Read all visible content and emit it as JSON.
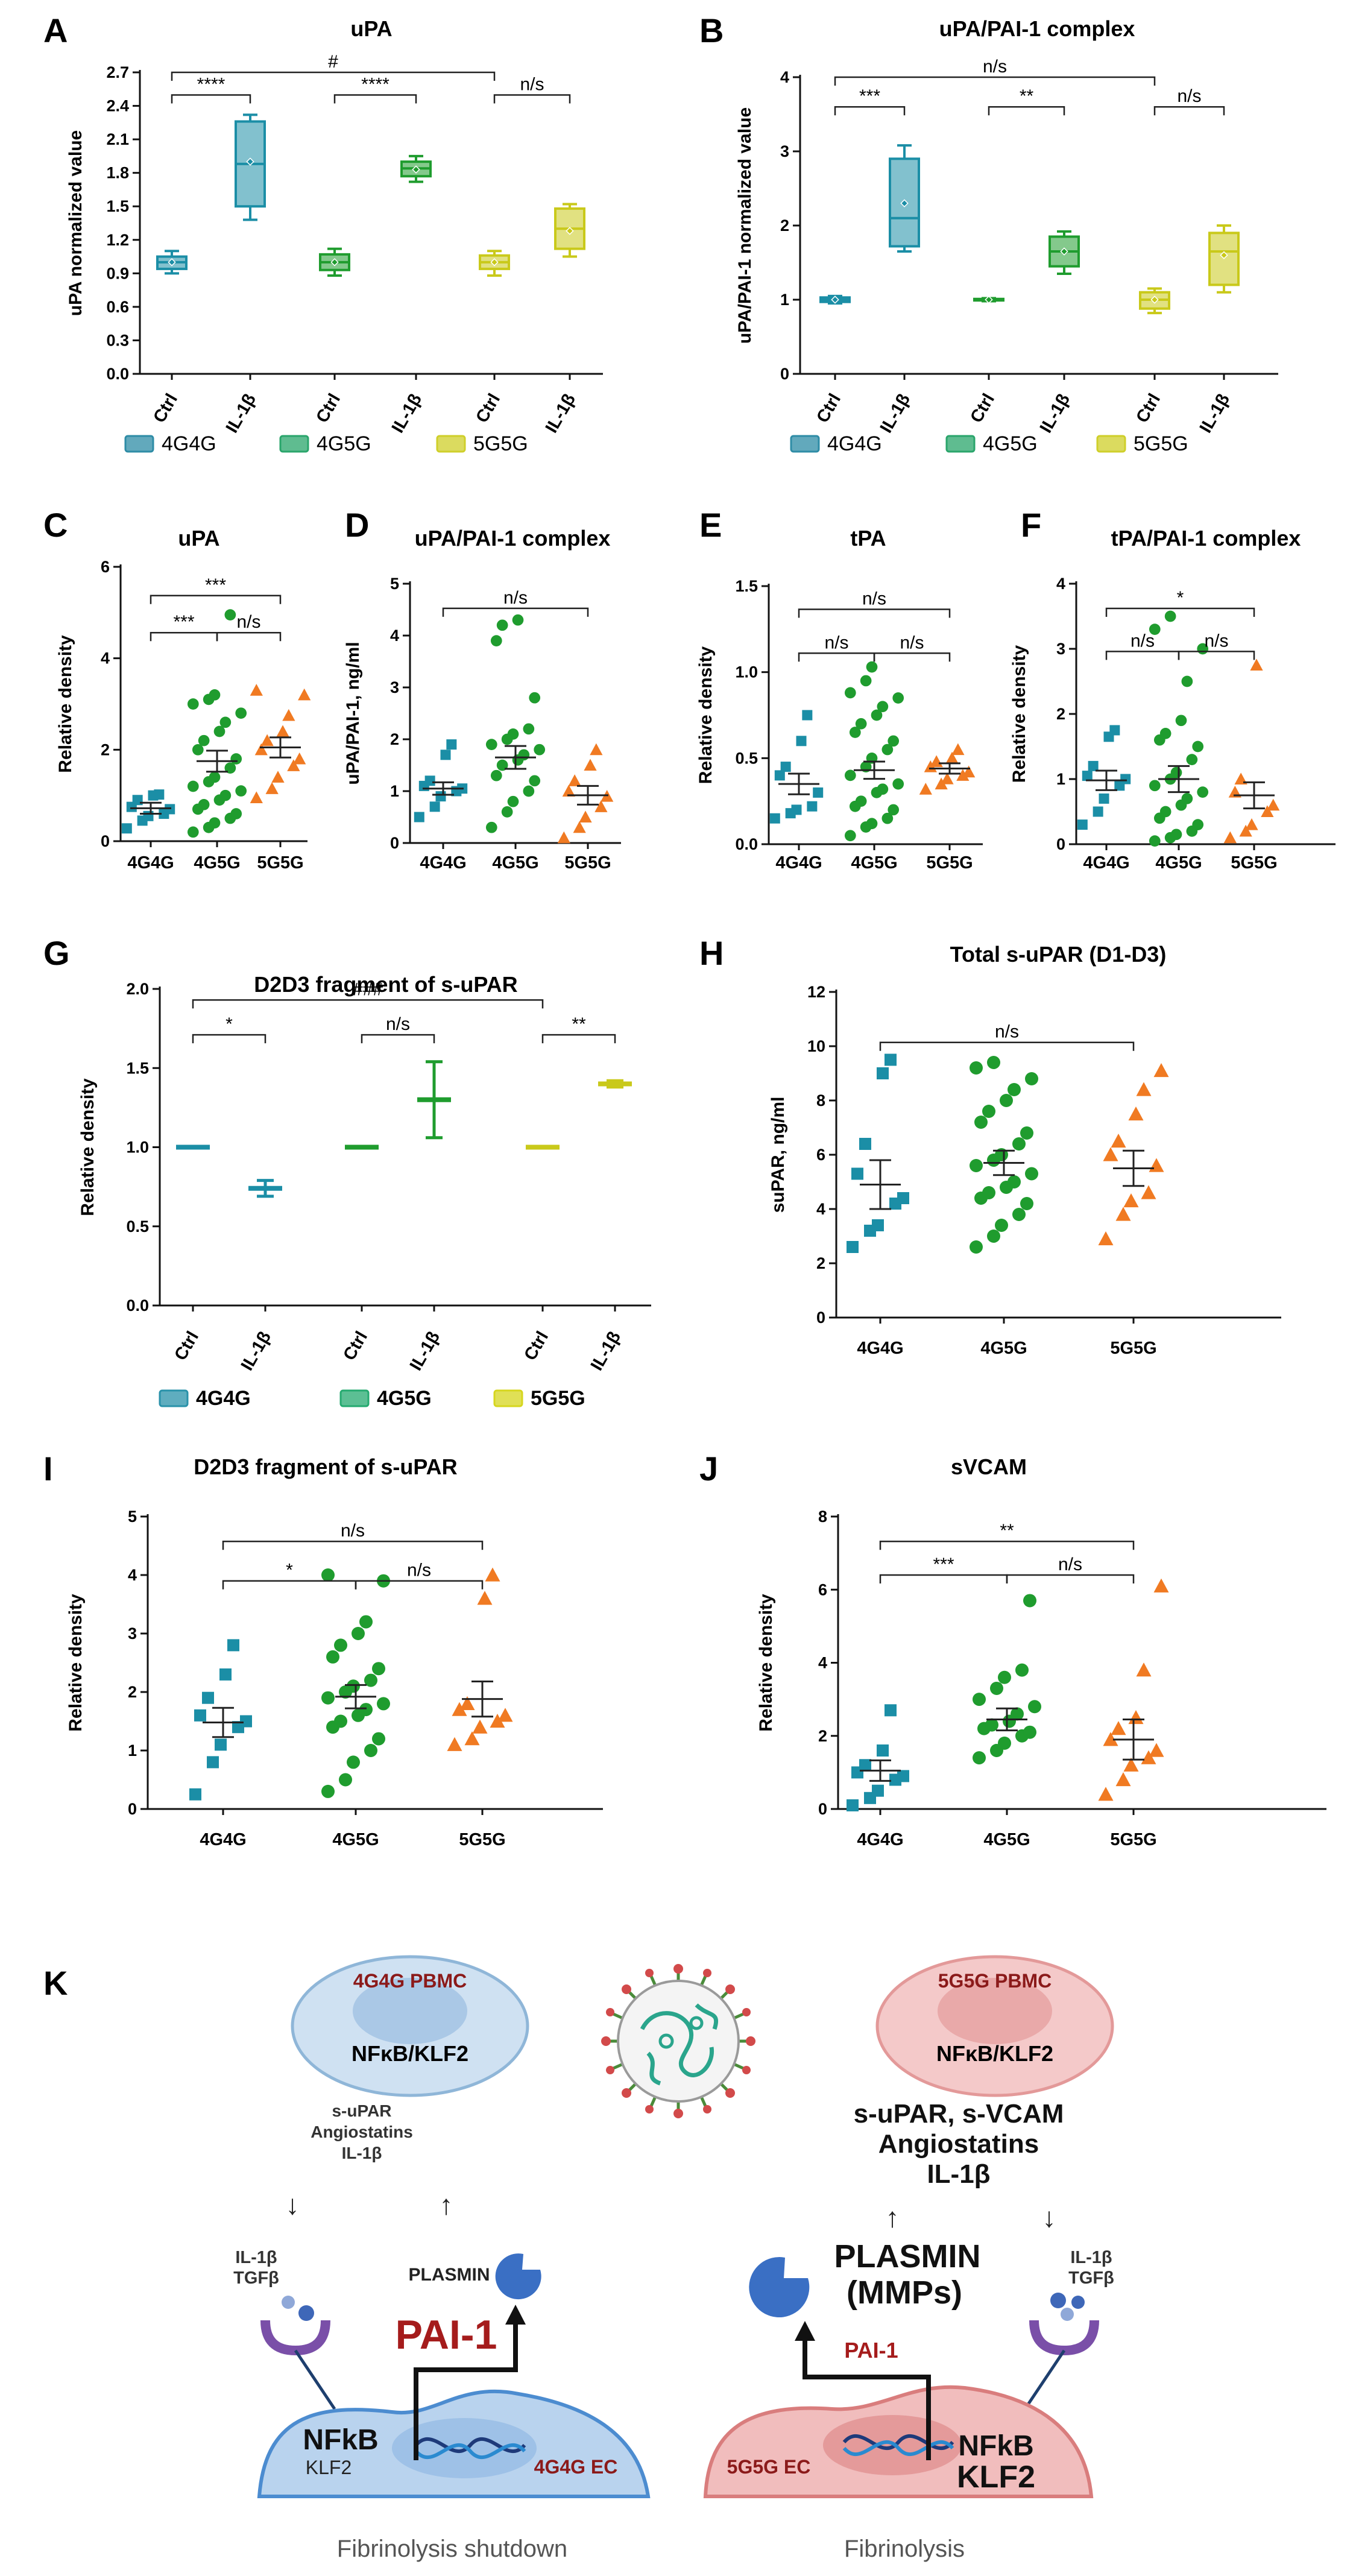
{
  "panel_labels": {
    "A": "A",
    "B": "B",
    "C": "C",
    "D": "D",
    "E": "E",
    "F": "F",
    "G": "G",
    "H": "H",
    "I": "I",
    "J": "J",
    "K": "K"
  },
  "groups": [
    "4G4G",
    "4G5G",
    "5G5G"
  ],
  "conditions": [
    "Ctrl",
    "IL-1β"
  ],
  "colors": {
    "4G4G": "#1b8ea6",
    "4G5G": "#1f9c2e",
    "5G5G": "#c9c91a",
    "orange": "#f07a22",
    "legendA": [
      "#2e8ca6",
      "#2aa56b",
      "#cfcf2a"
    ],
    "legendG": [
      "#2a92aa",
      "#25aa70",
      "#d6d61e"
    ]
  },
  "chart_data": [
    {
      "id": "A",
      "type": "box",
      "title": "uPA",
      "ylabel": "uPA normalized value",
      "ylim": [
        0,
        2.7
      ],
      "yticks": [
        "0.0",
        "0.3",
        "0.6",
        "0.9",
        "1.2",
        "1.5",
        "1.8",
        "2.1",
        "2.4",
        "2.7"
      ],
      "categories": [
        "Ctrl",
        "IL-1β",
        "Ctrl",
        "IL-1β",
        "Ctrl",
        "IL-1β"
      ],
      "boxes": [
        {
          "group": "4G4G",
          "cond": "Ctrl",
          "min": 0.9,
          "q1": 0.94,
          "median": 1.0,
          "q3": 1.05,
          "max": 1.1,
          "mean": 1.0
        },
        {
          "group": "4G4G",
          "cond": "IL-1β",
          "min": 1.38,
          "q1": 1.5,
          "median": 1.88,
          "q3": 2.26,
          "max": 2.32,
          "mean": 1.9
        },
        {
          "group": "4G5G",
          "cond": "Ctrl",
          "min": 0.88,
          "q1": 0.93,
          "median": 1.0,
          "q3": 1.07,
          "max": 1.12,
          "mean": 1.0
        },
        {
          "group": "4G5G",
          "cond": "IL-1β",
          "min": 1.72,
          "q1": 1.77,
          "median": 1.84,
          "q3": 1.9,
          "max": 1.95,
          "mean": 1.83
        },
        {
          "group": "5G5G",
          "cond": "Ctrl",
          "min": 0.88,
          "q1": 0.94,
          "median": 1.0,
          "q3": 1.06,
          "max": 1.1,
          "mean": 1.0
        },
        {
          "group": "5G5G",
          "cond": "IL-1β",
          "min": 1.05,
          "q1": 1.12,
          "median": 1.3,
          "q3": 1.48,
          "max": 1.52,
          "mean": 1.28
        }
      ],
      "annotations": [
        "****",
        "****",
        "n/s",
        "#"
      ],
      "legend": [
        "4G4G",
        "4G5G",
        "5G5G"
      ]
    },
    {
      "id": "B",
      "type": "box",
      "title": "uPA/PAI-1 complex",
      "ylabel": "uPA/PAI-1 normalized value",
      "ylim": [
        0,
        4
      ],
      "yticks": [
        "0",
        "1",
        "2",
        "3",
        "4"
      ],
      "categories": [
        "Ctrl",
        "IL-1β",
        "Ctrl",
        "IL-1β",
        "Ctrl",
        "IL-1β"
      ],
      "boxes": [
        {
          "group": "4G4G",
          "cond": "Ctrl",
          "min": 0.95,
          "q1": 0.97,
          "median": 1.0,
          "q3": 1.03,
          "max": 1.05,
          "mean": 1.0
        },
        {
          "group": "4G4G",
          "cond": "IL-1β",
          "min": 1.65,
          "q1": 1.72,
          "median": 2.1,
          "q3": 2.9,
          "max": 3.08,
          "mean": 2.3
        },
        {
          "group": "4G5G",
          "cond": "Ctrl",
          "min": 0.98,
          "q1": 0.99,
          "median": 1.0,
          "q3": 1.01,
          "max": 1.02,
          "mean": 1.0
        },
        {
          "group": "4G5G",
          "cond": "IL-1β",
          "min": 1.35,
          "q1": 1.45,
          "median": 1.65,
          "q3": 1.85,
          "max": 1.92,
          "mean": 1.65
        },
        {
          "group": "5G5G",
          "cond": "Ctrl",
          "min": 0.82,
          "q1": 0.88,
          "median": 1.0,
          "q3": 1.1,
          "max": 1.15,
          "mean": 1.0
        },
        {
          "group": "5G5G",
          "cond": "IL-1β",
          "min": 1.1,
          "q1": 1.2,
          "median": 1.65,
          "q3": 1.9,
          "max": 2.0,
          "mean": 1.6
        }
      ],
      "annotations": [
        "***",
        "**",
        "n/s",
        "n/s"
      ],
      "legend": [
        "4G4G",
        "4G5G",
        "5G5G"
      ]
    },
    {
      "id": "C",
      "type": "scatter",
      "title": "uPA",
      "ylabel": "Relative density",
      "ylim": [
        0,
        6
      ],
      "yticks": [
        "0",
        "2",
        "4",
        "6"
      ],
      "categories": [
        "4G4G",
        "4G5G",
        "5G5G"
      ],
      "points": [
        [
          0.28,
          0.45,
          0.55,
          0.6,
          0.7,
          0.75,
          0.9,
          1.0,
          1.02
        ],
        [
          0.2,
          0.3,
          0.4,
          0.5,
          0.6,
          0.7,
          0.8,
          0.9,
          1.0,
          1.1,
          1.2,
          1.3,
          1.4,
          1.6,
          1.8,
          2.0,
          2.2,
          2.4,
          2.6,
          2.8,
          3.0,
          3.1,
          3.2,
          4.95
        ],
        [
          0.95,
          1.15,
          1.4,
          1.65,
          1.8,
          2.0,
          2.2,
          2.4,
          2.75,
          3.2,
          3.3
        ]
      ],
      "means": [
        0.72,
        1.75,
        2.05
      ],
      "sems": [
        0.12,
        0.23,
        0.22
      ],
      "annotations": [
        "***",
        "n/s",
        "***"
      ]
    },
    {
      "id": "D",
      "type": "scatter",
      "title": "uPA/PAI-1 complex",
      "ylabel": "uPA/PAI-1, ng/ml",
      "ylim": [
        0,
        5
      ],
      "yticks": [
        "0",
        "1",
        "2",
        "3",
        "4",
        "5"
      ],
      "categories": [
        "4G4G",
        "4G5G",
        "5G5G"
      ],
      "points": [
        [
          0.5,
          0.7,
          0.9,
          1.0,
          1.05,
          1.1,
          1.2,
          1.7,
          1.9
        ],
        [
          0.3,
          0.6,
          0.8,
          1.0,
          1.2,
          1.3,
          1.5,
          1.6,
          1.7,
          1.8,
          1.9,
          2.0,
          2.1,
          2.2,
          2.8,
          3.9,
          4.2,
          4.3
        ],
        [
          0.1,
          0.3,
          0.5,
          0.7,
          0.9,
          1.0,
          1.2,
          1.5,
          1.8
        ]
      ],
      "means": [
        1.05,
        1.65,
        0.92
      ],
      "sems": [
        0.12,
        0.22,
        0.18
      ],
      "annotations": [
        "n/s"
      ]
    },
    {
      "id": "E",
      "type": "scatter",
      "title": "tPA",
      "ylabel": "Relative density",
      "ylim": [
        0,
        1.5
      ],
      "yticks": [
        "0.0",
        "0.5",
        "1.0",
        "1.5"
      ],
      "categories": [
        "4G4G",
        "4G5G",
        "5G5G"
      ],
      "points": [
        [
          0.15,
          0.18,
          0.2,
          0.22,
          0.3,
          0.4,
          0.45,
          0.6,
          0.75
        ],
        [
          0.05,
          0.1,
          0.12,
          0.15,
          0.2,
          0.22,
          0.25,
          0.3,
          0.32,
          0.35,
          0.4,
          0.45,
          0.5,
          0.55,
          0.6,
          0.65,
          0.7,
          0.75,
          0.8,
          0.85,
          0.88,
          0.95,
          1.03
        ],
        [
          0.32,
          0.35,
          0.38,
          0.4,
          0.42,
          0.45,
          0.48,
          0.5,
          0.55
        ]
      ],
      "means": [
        0.35,
        0.43,
        0.44
      ],
      "sems": [
        0.06,
        0.05,
        0.03
      ],
      "annotations": [
        "n/s",
        "n/s",
        "n/s"
      ]
    },
    {
      "id": "F",
      "type": "scatter",
      "title": "tPA/PAI-1 complex",
      "ylabel": "Relative density",
      "ylim": [
        0,
        4
      ],
      "yticks": [
        "0",
        "1",
        "2",
        "3",
        "4"
      ],
      "categories": [
        "4G4G",
        "4G5G",
        "5G5G"
      ],
      "points": [
        [
          0.3,
          0.5,
          0.7,
          0.9,
          1.0,
          1.05,
          1.2,
          1.65,
          1.75
        ],
        [
          0.05,
          0.1,
          0.15,
          0.2,
          0.3,
          0.4,
          0.5,
          0.6,
          0.7,
          0.8,
          0.9,
          1.0,
          1.1,
          1.3,
          1.5,
          1.6,
          1.7,
          1.9,
          2.5,
          3.0,
          3.3,
          3.5
        ],
        [
          0.1,
          0.2,
          0.3,
          0.5,
          0.6,
          0.8,
          1.0,
          2.75
        ]
      ],
      "means": [
        0.98,
        1.0,
        0.75
      ],
      "sems": [
        0.15,
        0.2,
        0.2
      ],
      "annotations": [
        "n/s",
        "n/s",
        "*"
      ]
    },
    {
      "id": "G",
      "type": "errorbar",
      "title": "D2D3 fragment of s-uPAR",
      "ylabel": "Relative density",
      "ylim": [
        0,
        2
      ],
      "yticks": [
        "0.0",
        "0.5",
        "1.0",
        "1.5",
        "2.0"
      ],
      "categories": [
        "Ctrl",
        "IL-1β",
        "Ctrl",
        "IL-1β",
        "Ctrl",
        "IL-1β"
      ],
      "means": [
        1.0,
        0.74,
        1.0,
        1.3,
        1.0,
        1.4
      ],
      "sems": [
        0,
        0.05,
        0,
        0.24,
        0,
        0.02
      ],
      "annotations": [
        "*",
        "n/s",
        "**",
        "###"
      ],
      "legend": [
        "4G4G",
        "4G5G",
        "5G5G"
      ]
    },
    {
      "id": "H",
      "type": "scatter",
      "title": "Total s-uPAR (D1-D3)",
      "ylabel": "suPAR, ng/ml",
      "ylim": [
        0,
        12
      ],
      "yticks": [
        "0",
        "2",
        "4",
        "6",
        "8",
        "10",
        "12"
      ],
      "categories": [
        "4G4G",
        "4G5G",
        "5G5G"
      ],
      "points": [
        [
          2.6,
          3.2,
          3.4,
          4.2,
          4.4,
          5.3,
          6.4,
          9.0,
          9.5
        ],
        [
          2.6,
          3.0,
          3.4,
          3.8,
          4.2,
          4.4,
          4.6,
          4.8,
          5.0,
          5.3,
          5.6,
          5.8,
          6.0,
          6.4,
          6.8,
          7.2,
          7.6,
          8.0,
          8.4,
          8.8,
          9.2,
          9.4
        ],
        [
          2.9,
          3.8,
          4.3,
          4.6,
          5.6,
          6.0,
          6.5,
          7.5,
          8.4,
          9.1
        ]
      ],
      "means": [
        4.9,
        5.7,
        5.5
      ],
      "sems": [
        0.9,
        0.45,
        0.65
      ],
      "annotations": [
        "n/s"
      ]
    },
    {
      "id": "I",
      "type": "scatter",
      "title": "D2D3 fragment of s-uPAR",
      "ylabel": "Relative density",
      "ylim": [
        0,
        5
      ],
      "yticks": [
        "0",
        "1",
        "2",
        "3",
        "4",
        "5"
      ],
      "categories": [
        "4G4G",
        "4G5G",
        "5G5G"
      ],
      "points": [
        [
          0.25,
          0.8,
          1.1,
          1.4,
          1.5,
          1.6,
          1.9,
          2.3,
          2.8
        ],
        [
          0.3,
          0.5,
          0.8,
          1.0,
          1.2,
          1.4,
          1.5,
          1.6,
          1.7,
          1.8,
          1.9,
          2.0,
          2.1,
          2.2,
          2.4,
          2.6,
          2.8,
          3.0,
          3.2,
          3.9,
          4.0
        ],
        [
          1.1,
          1.2,
          1.4,
          1.5,
          1.6,
          1.7,
          1.8,
          3.6,
          4.0
        ]
      ],
      "means": [
        1.48,
        1.92,
        1.88
      ],
      "sems": [
        0.25,
        0.2,
        0.3
      ],
      "annotations": [
        "*",
        "n/s",
        "n/s"
      ]
    },
    {
      "id": "J",
      "type": "scatter",
      "title": "sVCAM",
      "ylabel": "Relative density",
      "ylim": [
        0,
        8
      ],
      "yticks": [
        "0",
        "2",
        "4",
        "6",
        "8"
      ],
      "categories": [
        "4G4G",
        "4G5G",
        "5G5G"
      ],
      "points": [
        [
          0.1,
          0.3,
          0.5,
          0.8,
          0.9,
          1.0,
          1.2,
          1.6,
          2.7
        ],
        [
          1.4,
          1.6,
          1.8,
          2.0,
          2.1,
          2.2,
          2.3,
          2.4,
          2.6,
          2.8,
          3.0,
          3.3,
          3.6,
          3.8,
          5.7
        ],
        [
          0.4,
          0.8,
          1.2,
          1.4,
          1.6,
          1.9,
          2.2,
          2.5,
          3.8,
          6.1
        ]
      ],
      "means": [
        1.05,
        2.45,
        1.9
      ],
      "sems": [
        0.28,
        0.3,
        0.55
      ],
      "annotations": [
        "***",
        "n/s",
        "**"
      ]
    }
  ],
  "diagram": {
    "virus_icon": "coronavirus-icon",
    "left": {
      "cell_label": "4G4G PBMC",
      "nucleus_label": "NFκB/KLF2",
      "secreted": [
        "s-uPAR",
        "Angiostatins",
        "IL-1β"
      ],
      "ligands": [
        "IL-1β",
        "TGFβ"
      ],
      "plasmin": "PLASMIN",
      "pai1": "PAI-1",
      "ec_nfkb": "NFkB",
      "ec_klf2": "KLF2",
      "ec_label": "4G4G EC",
      "caption": "Fibrinolysis shutdown"
    },
    "right": {
      "cell_label": "5G5G PBMC",
      "nucleus_label": "NFκB/KLF2",
      "secreted": [
        "s-uPAR, s-VCAM",
        "Angiostatins",
        "IL-1β"
      ],
      "ligands": [
        "IL-1β",
        "TGFβ"
      ],
      "plasmin": "PLASMIN",
      "mmps": "(MMPs)",
      "pai1": "PAI-1",
      "ec_nfkb": "NFkB",
      "ec_klf2": "KLF2",
      "ec_label": "5G5G EC",
      "caption": "Fibrinolysis"
    },
    "arrows": {
      "down": "↓",
      "up": "↑"
    }
  }
}
